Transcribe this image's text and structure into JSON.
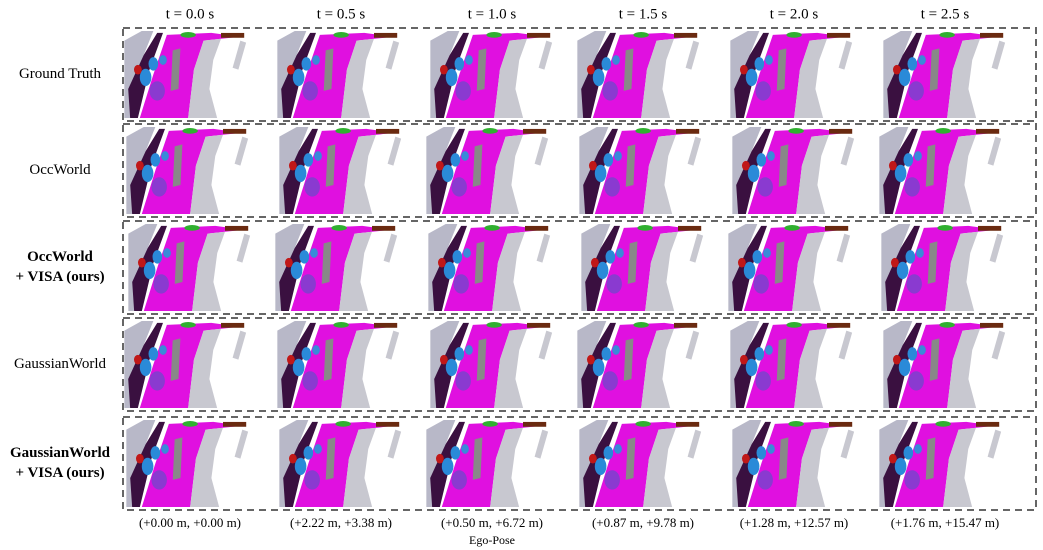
{
  "columns": [
    "t = 0.0 s",
    "t = 0.5 s",
    "t = 1.0 s",
    "t = 1.5 s",
    "t = 2.0 s",
    "t = 2.5 s"
  ],
  "rows": [
    {
      "lines": [
        "Ground Truth"
      ],
      "bold": false
    },
    {
      "lines": [
        "OccWorld"
      ],
      "bold": false
    },
    {
      "lines": [
        "OccWorld",
        "+ VISA (ours)"
      ],
      "bold": true
    },
    {
      "lines": [
        "GaussianWorld"
      ],
      "bold": false
    },
    {
      "lines": [
        "GaussianWorld",
        "+ VISA (ours)"
      ],
      "bold": true
    }
  ],
  "ego_poses": [
    "(+0.00 m, +0.00 m)",
    "(+2.22 m, +3.38 m)",
    "(+0.50 m, +6.72 m)",
    "(+0.87 m, +9.78 m)",
    "(+1.28 m, +12.57 m)",
    "(+1.76 m, +15.47 m)"
  ],
  "ego_pose_caption": "Ego-Pose"
}
